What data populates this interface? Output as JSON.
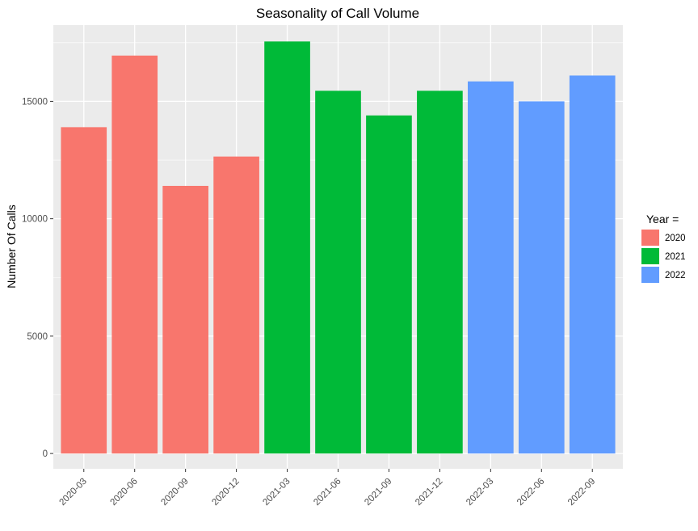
{
  "chart_data": {
    "type": "bar",
    "title": "Seasonality of Call Volume",
    "xlabel": "",
    "ylabel": "Number Of Calls",
    "categories": [
      "2020-03",
      "2020-06",
      "2020-09",
      "2020-12",
      "2021-03",
      "2021-06",
      "2021-09",
      "2021-12",
      "2022-03",
      "2022-06",
      "2022-09"
    ],
    "values": [
      13900,
      16950,
      11400,
      12650,
      17550,
      15450,
      14400,
      15450,
      15850,
      15000,
      16100
    ],
    "groups": [
      "2020",
      "2020",
      "2020",
      "2020",
      "2021",
      "2021",
      "2021",
      "2021",
      "2022",
      "2022",
      "2022"
    ],
    "ylim": [
      -650,
      18250
    ],
    "yticks": [
      0,
      5000,
      10000,
      15000
    ],
    "ytick_labels": [
      "0",
      "5000",
      "10000",
      "15000"
    ],
    "grid": true,
    "legend": {
      "title": "Year =",
      "placement": "right",
      "entries": [
        {
          "label": "2020",
          "color": "#F8766D"
        },
        {
          "label": "2021",
          "color": "#00BA38"
        },
        {
          "label": "2022",
          "color": "#619CFF"
        }
      ]
    },
    "colors": {
      "panel_background": "#EBEBEB",
      "grid": "#FFFFFF"
    }
  }
}
